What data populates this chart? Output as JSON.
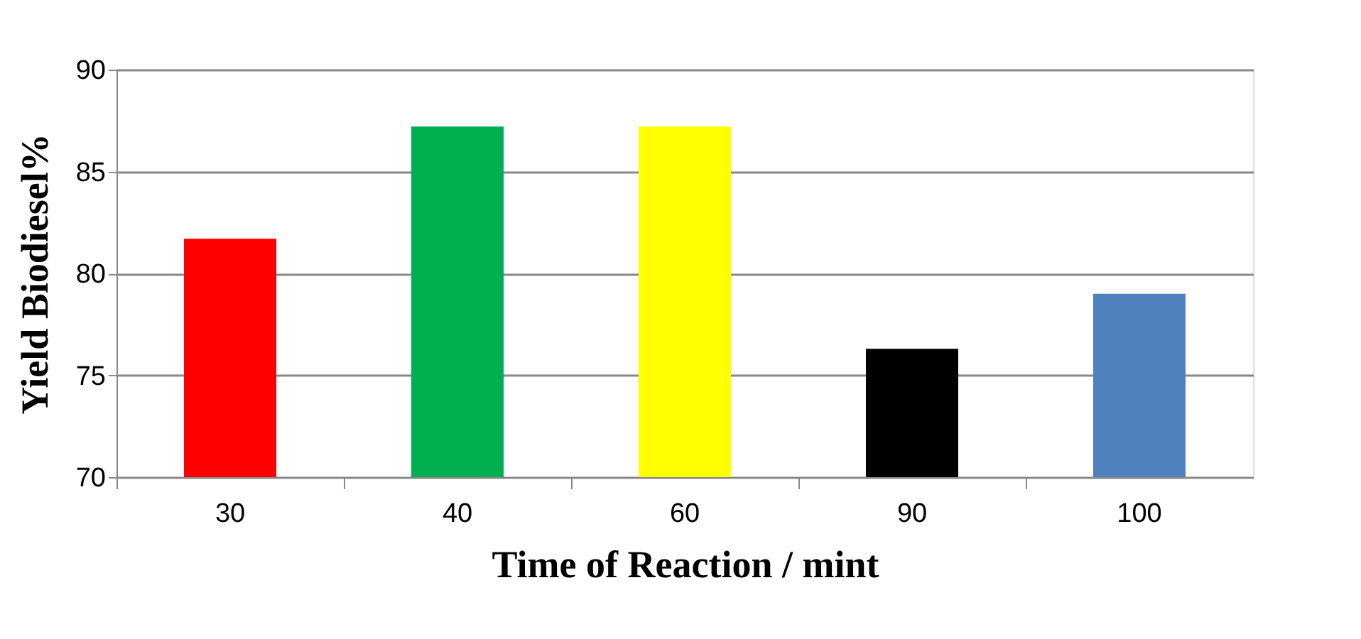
{
  "chart_data": {
    "type": "bar",
    "xlabel": "Time of Reaction / mint",
    "ylabel": "Yield  Biodiesel%",
    "categories": [
      "30",
      "40",
      "60",
      "90",
      "100"
    ],
    "values": [
      81.7,
      87.2,
      87.2,
      76.3,
      79.0
    ],
    "colors": [
      "#ff0000",
      "#00b050",
      "#ffff00",
      "#000000",
      "#4f81bd"
    ],
    "ylim": [
      70,
      90
    ],
    "yticks": [
      70,
      75,
      80,
      85,
      90
    ],
    "grid": "y",
    "legend": false
  }
}
